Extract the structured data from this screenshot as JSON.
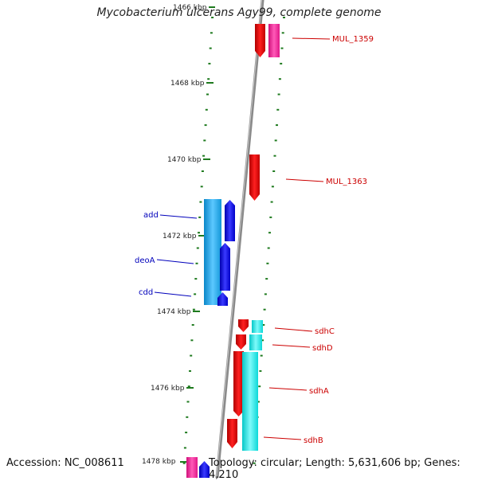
{
  "title": "Mycobacterium ulcerans Agy99, complete genome",
  "accession_text": "Accession: NC_008611",
  "topology_text": "Topology: circular; Length: 5,631,606 bp; Genes: 4,210",
  "tick_labels": [
    "1466 kbp",
    "1468 kbp",
    "1470 kbp",
    "1472 kbp",
    "1474 kbp",
    "1476 kbp",
    "1478 kbp"
  ],
  "colors": {
    "backbone": "#8a8a8a",
    "tick": "#1e7a1e",
    "red_gene": "#ee0000",
    "pink_gene": "#ff2aa0",
    "cyan_gene": "#11e6e6",
    "light_blue_gene": "#19a6e6",
    "blue_gene": "#0000e6",
    "red_label": "#cc0000",
    "blue_label": "#0000bb"
  },
  "gene_labels": [
    {
      "text": "MUL_1359",
      "side": "right",
      "color": "red"
    },
    {
      "text": "MUL_1363",
      "side": "right",
      "color": "red"
    },
    {
      "text": "add",
      "side": "left",
      "color": "blue"
    },
    {
      "text": "deoA",
      "side": "left",
      "color": "blue"
    },
    {
      "text": "cdd",
      "side": "left",
      "color": "blue"
    },
    {
      "text": "sdhC",
      "side": "right",
      "color": "red"
    },
    {
      "text": "sdhD",
      "side": "right",
      "color": "red"
    },
    {
      "text": "sdhA",
      "side": "right",
      "color": "red"
    },
    {
      "text": "sdhB",
      "side": "right",
      "color": "red"
    }
  ]
}
